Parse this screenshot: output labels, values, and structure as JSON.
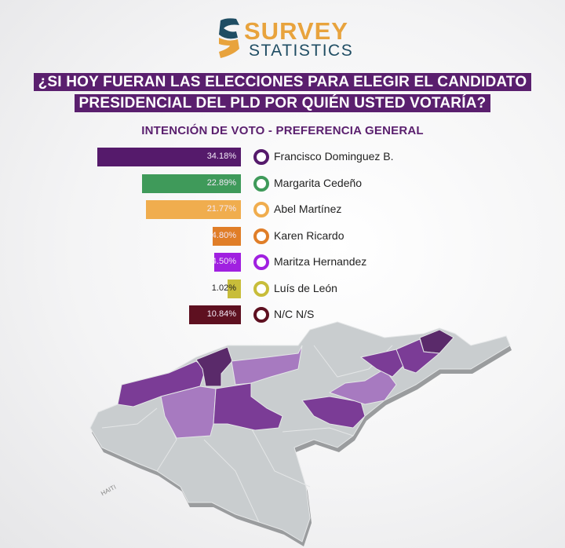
{
  "logo": {
    "word1": "SURVEY",
    "word2": "STATISTICS",
    "colors": {
      "orange": "#e8a33d",
      "navy": "#1f4d63"
    }
  },
  "question": {
    "line1": "¿SI HOY FUERAN LAS ELECCIONES PARA ELEGIR EL CANDIDATO",
    "line2": "PRESIDENCIAL DEL PLD POR QUIÉN USTED VOTARÍA?"
  },
  "subtitle": "INTENCIÓN DE VOTO - PREFERENCIA GENERAL",
  "chart_data": {
    "type": "bar",
    "title": "INTENCIÓN DE VOTO - PREFERENCIA GENERAL",
    "orientation": "horizontal",
    "unit": "%",
    "categories": [
      "Francisco Dominguez B.",
      "Margarita Cedeño",
      "Abel Martínez",
      "Karen Ricardo",
      "Maritza Hernandez",
      "Luís de León",
      "N/C N/S"
    ],
    "values": [
      34.18,
      22.89,
      21.77,
      4.8,
      4.5,
      1.02,
      10.84
    ],
    "labels": [
      "34.18%",
      "22.89%",
      "21.77%",
      "4.80%",
      "4.50%",
      "1.02%",
      "10.84%"
    ],
    "colors": [
      "#551a6b",
      "#3f9a5a",
      "#f0ad4e",
      "#e07e28",
      "#a020e0",
      "#c8bd3a",
      "#5e1020"
    ]
  },
  "map": {
    "label_haiti": "HAITI"
  }
}
